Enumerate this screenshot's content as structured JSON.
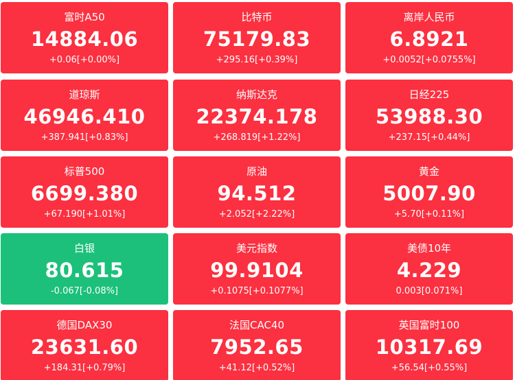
{
  "colors": {
    "up": "#fb3040",
    "down": "#1cc07b",
    "text": "#ffffff"
  },
  "tiles": [
    {
      "name": "富时A50",
      "price": "14884.06",
      "change": "+0.06[+0.00%]",
      "trend": "up"
    },
    {
      "name": "比特币",
      "price": "75179.83",
      "change": "+295.16[+0.39%]",
      "trend": "up"
    },
    {
      "name": "离岸人民币",
      "price": "6.8921",
      "change": "+0.0052[+0.0755%]",
      "trend": "up"
    },
    {
      "name": "道琼斯",
      "price": "46946.410",
      "change": "+387.941[+0.83%]",
      "trend": "up"
    },
    {
      "name": "纳斯达克",
      "price": "22374.178",
      "change": "+268.819[+1.22%]",
      "trend": "up"
    },
    {
      "name": "日经225",
      "price": "53988.30",
      "change": "+237.15[+0.44%]",
      "trend": "up"
    },
    {
      "name": "标普500",
      "price": "6699.380",
      "change": "+67.190[+1.01%]",
      "trend": "up"
    },
    {
      "name": "原油",
      "price": "94.512",
      "change": "+2.052[+2.22%]",
      "trend": "up"
    },
    {
      "name": "黄金",
      "price": "5007.90",
      "change": "+5.70[+0.11%]",
      "trend": "up"
    },
    {
      "name": "白银",
      "price": "80.615",
      "change": "-0.067[-0.08%]",
      "trend": "down"
    },
    {
      "name": "美元指数",
      "price": "99.9104",
      "change": "+0.1075[+0.1077%]",
      "trend": "up"
    },
    {
      "name": "美债10年",
      "price": "4.229",
      "change": "0.003[0.071%]",
      "trend": "up"
    },
    {
      "name": "德国DAX30",
      "price": "23631.60",
      "change": "+184.31[+0.79%]",
      "trend": "up"
    },
    {
      "name": "法国CAC40",
      "price": "7952.65",
      "change": "+41.12[+0.52%]",
      "trend": "up"
    },
    {
      "name": "英国富时100",
      "price": "10317.69",
      "change": "+56.54[+0.55%]",
      "trend": "up"
    }
  ]
}
